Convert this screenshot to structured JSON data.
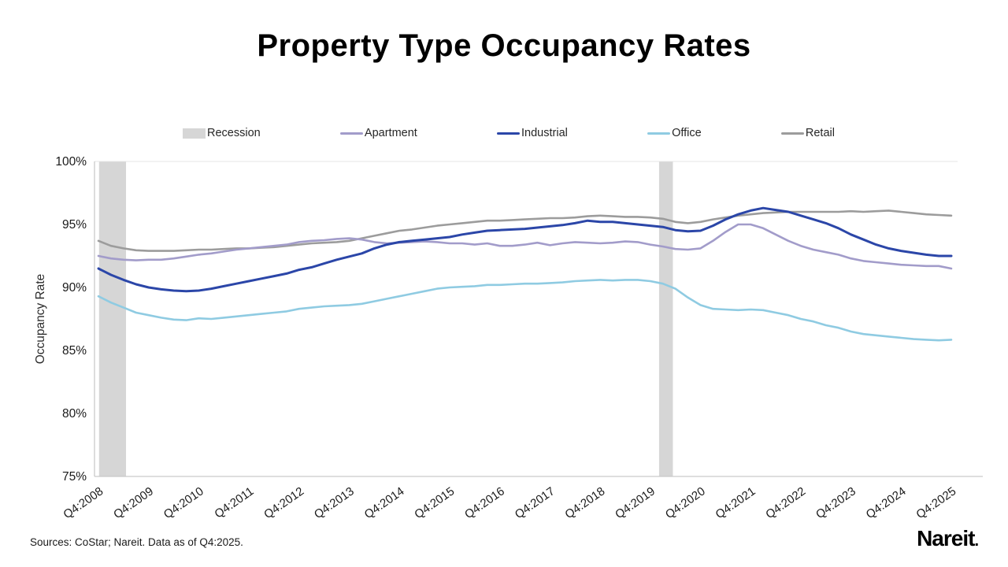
{
  "title": "Property Type Occupancy Rates",
  "source_note": "Sources: CoStar; Nareit. Data as of Q4:2025.",
  "logo_text": "Nareit",
  "logo_dot": ".",
  "colors": {
    "recession": "#d6d6d6",
    "apartment": "#a29cca",
    "industrial": "#2b46a8",
    "office": "#8fcbe2",
    "retail": "#9c9c9c",
    "axis": "#c9c9c9",
    "top_gridline": "#e4e4e4",
    "tick_text": "#1a1a1a"
  },
  "legend": {
    "items": [
      {
        "label": "Recession",
        "type": "band",
        "color_key": "recession"
      },
      {
        "label": "Apartment",
        "type": "line",
        "color_key": "apartment"
      },
      {
        "label": "Industrial",
        "type": "line",
        "color_key": "industrial"
      },
      {
        "label": "Office",
        "type": "line",
        "color_key": "office"
      },
      {
        "label": "Retail",
        "type": "line",
        "color_key": "retail"
      }
    ]
  },
  "chart_data": {
    "type": "line",
    "title": "Property Type Occupancy Rates",
    "ylabel": "Occupancy Rate",
    "xlabel": "",
    "ylim": [
      75,
      100
    ],
    "yticks": [
      100,
      95,
      90,
      85,
      80,
      75
    ],
    "ytick_labels": [
      "100%",
      "95%",
      "90%",
      "85%",
      "80%",
      "75%"
    ],
    "grid": false,
    "legend_position": "top",
    "x_start": "Q4:2008",
    "x_frequency": "quarterly",
    "x_tick_labels": [
      "Q4:2008",
      "Q4:2009",
      "Q4:2010",
      "Q4:2011",
      "Q4:2012",
      "Q4:2013",
      "Q4:2014",
      "Q4:2015",
      "Q4:2016",
      "Q4:2017",
      "Q4:2018",
      "Q4:2019",
      "Q4:2020",
      "Q4:2021",
      "Q4:2022",
      "Q4:2023",
      "Q4:2024",
      "Q4:2025"
    ],
    "x_tick_every_n_points": 4,
    "recession_bands": [
      {
        "from_label": "Q4:2008",
        "to_label": "Q2:2009",
        "from_index": 0.05,
        "to_index": 2.2
      },
      {
        "from_label": "Q1:2020",
        "to_label": "Q2:2020",
        "from_index": 44.7,
        "to_index": 45.8
      }
    ],
    "series": [
      {
        "name": "Apartment",
        "color_key": "apartment",
        "values": [
          92.5,
          92.3,
          92.2,
          92.15,
          92.2,
          92.2,
          92.3,
          92.45,
          92.6,
          92.7,
          92.85,
          93.0,
          93.1,
          93.2,
          93.3,
          93.4,
          93.6,
          93.7,
          93.75,
          93.85,
          93.9,
          93.8,
          93.6,
          93.5,
          93.55,
          93.6,
          93.65,
          93.6,
          93.5,
          93.5,
          93.4,
          93.5,
          93.3,
          93.3,
          93.4,
          93.55,
          93.35,
          93.5,
          93.6,
          93.55,
          93.5,
          93.55,
          93.65,
          93.6,
          93.4,
          93.25,
          93.05,
          93.0,
          93.1,
          93.7,
          94.4,
          95.0,
          95.0,
          94.7,
          94.2,
          93.7,
          93.3,
          93.0,
          92.8,
          92.6,
          92.3,
          92.1,
          92.0,
          91.9,
          91.8,
          91.75,
          91.7,
          91.7,
          91.5
        ]
      },
      {
        "name": "Industrial",
        "color_key": "industrial",
        "values": [
          91.5,
          91.0,
          90.6,
          90.25,
          90.0,
          89.85,
          89.75,
          89.7,
          89.75,
          89.9,
          90.1,
          90.3,
          90.5,
          90.7,
          90.9,
          91.1,
          91.4,
          91.6,
          91.9,
          92.2,
          92.45,
          92.7,
          93.1,
          93.4,
          93.6,
          93.7,
          93.8,
          93.9,
          94.0,
          94.2,
          94.35,
          94.5,
          94.55,
          94.6,
          94.65,
          94.75,
          94.85,
          94.95,
          95.1,
          95.3,
          95.2,
          95.2,
          95.1,
          95.0,
          94.9,
          94.8,
          94.55,
          94.45,
          94.5,
          94.9,
          95.4,
          95.8,
          96.1,
          96.3,
          96.15,
          96.0,
          95.7,
          95.4,
          95.1,
          94.7,
          94.2,
          93.8,
          93.4,
          93.1,
          92.9,
          92.75,
          92.6,
          92.5,
          92.5
        ]
      },
      {
        "name": "Office",
        "color_key": "office",
        "values": [
          89.3,
          88.8,
          88.4,
          88.0,
          87.8,
          87.6,
          87.45,
          87.4,
          87.55,
          87.5,
          87.6,
          87.7,
          87.8,
          87.9,
          88.0,
          88.1,
          88.3,
          88.4,
          88.5,
          88.55,
          88.6,
          88.7,
          88.9,
          89.1,
          89.3,
          89.5,
          89.7,
          89.9,
          90.0,
          90.05,
          90.1,
          90.2,
          90.2,
          90.25,
          90.3,
          90.3,
          90.35,
          90.4,
          90.5,
          90.55,
          90.6,
          90.55,
          90.6,
          90.6,
          90.5,
          90.3,
          89.9,
          89.2,
          88.6,
          88.3,
          88.25,
          88.2,
          88.25,
          88.2,
          88.0,
          87.8,
          87.5,
          87.3,
          87.0,
          86.8,
          86.5,
          86.3,
          86.2,
          86.1,
          86.0,
          85.9,
          85.85,
          85.8,
          85.85
        ]
      },
      {
        "name": "Retail",
        "color_key": "retail",
        "values": [
          93.7,
          93.3,
          93.1,
          92.95,
          92.9,
          92.9,
          92.9,
          92.95,
          93.0,
          93.0,
          93.05,
          93.1,
          93.1,
          93.15,
          93.2,
          93.3,
          93.4,
          93.5,
          93.55,
          93.6,
          93.7,
          93.9,
          94.1,
          94.3,
          94.5,
          94.6,
          94.75,
          94.9,
          95.0,
          95.1,
          95.2,
          95.3,
          95.3,
          95.35,
          95.4,
          95.45,
          95.5,
          95.5,
          95.55,
          95.65,
          95.7,
          95.65,
          95.6,
          95.6,
          95.55,
          95.45,
          95.2,
          95.1,
          95.2,
          95.4,
          95.55,
          95.7,
          95.8,
          95.9,
          95.95,
          96.0,
          96.0,
          96.0,
          96.0,
          96.0,
          96.05,
          96.0,
          96.05,
          96.1,
          96.0,
          95.9,
          95.8,
          95.75,
          95.7
        ]
      }
    ]
  }
}
